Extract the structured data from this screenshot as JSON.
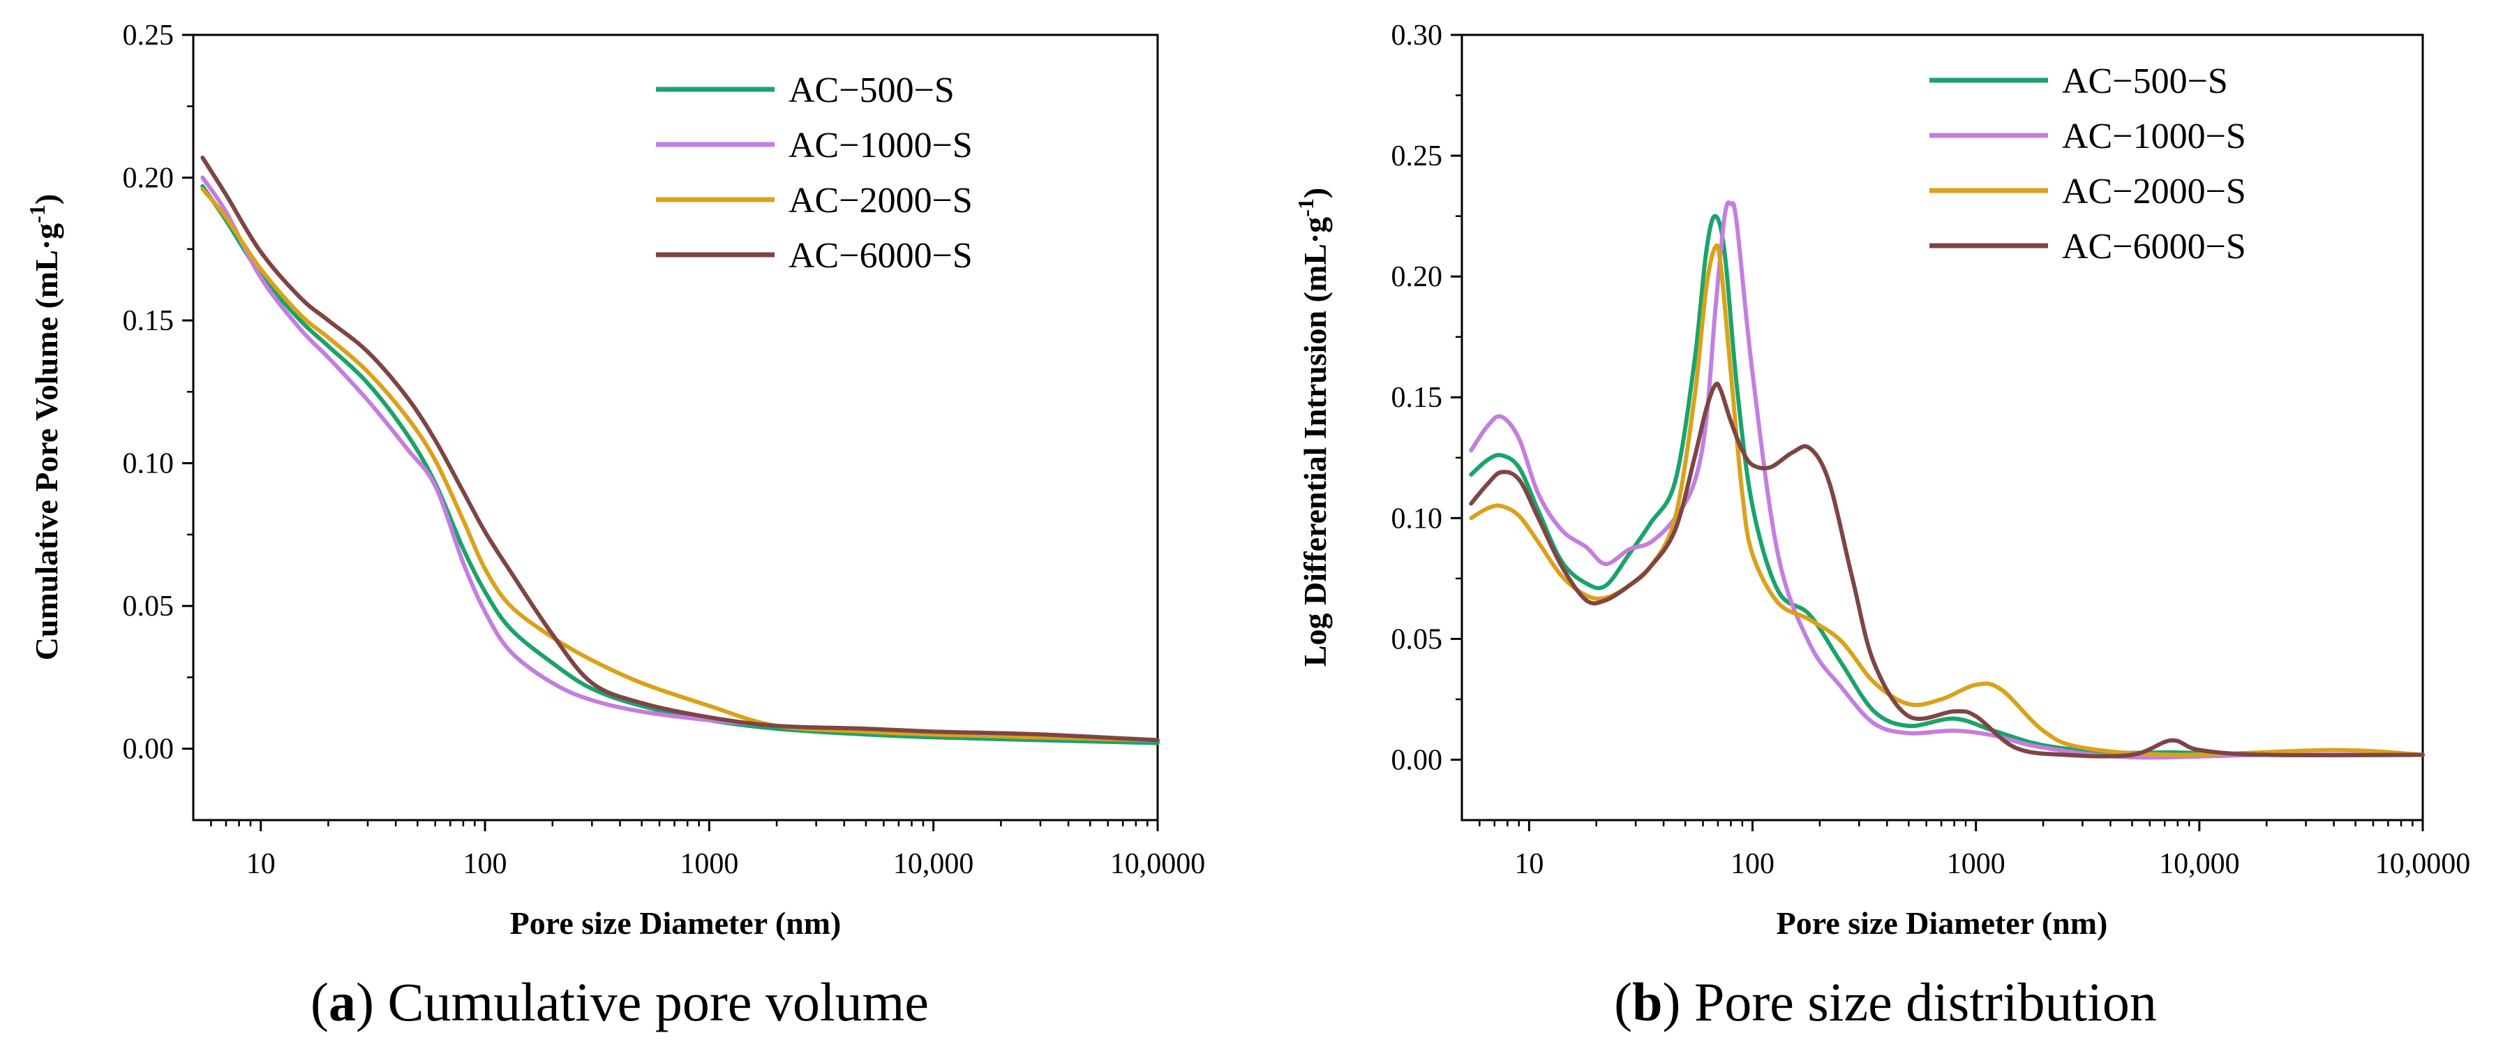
{
  "chart_data": [
    {
      "type": "line",
      "caption_letter": "a",
      "caption_text": "Cumulative pore volume",
      "xlabel": "Pore size Diameter (nm)",
      "ylabel_main": "Cumulative Pore Volume (mL·g",
      "ylabel_sup": "-1",
      "ylabel_end": ")",
      "xscale": "log",
      "xlim": [
        5,
        100000
      ],
      "ylim": [
        -0.025,
        0.25
      ],
      "x_ticks": [
        10,
        100,
        1000,
        10000,
        100000
      ],
      "x_tick_labels": [
        "10",
        "100",
        "1000",
        "10,000",
        "10,0000"
      ],
      "y_ticks": [
        0.0,
        0.05,
        0.1,
        0.15,
        0.2,
        0.25
      ],
      "y_tick_labels": [
        "0.00",
        "0.05",
        "0.10",
        "0.15",
        "0.20",
        "0.25"
      ],
      "legend_position": "top-right",
      "series": [
        {
          "name": "AC−500−S",
          "color": "#1aa36b",
          "x": [
            5.5,
            7,
            10,
            15,
            20,
            30,
            45,
            60,
            80,
            100,
            130,
            200,
            300,
            500,
            1000,
            2000,
            5000,
            10000,
            30000,
            100000
          ],
          "y": [
            0.197,
            0.185,
            0.166,
            0.15,
            0.141,
            0.128,
            0.11,
            0.093,
            0.07,
            0.055,
            0.042,
            0.03,
            0.021,
            0.015,
            0.01,
            0.007,
            0.005,
            0.004,
            0.003,
            0.002
          ]
        },
        {
          "name": "AC−1000−S",
          "color": "#c37ee0",
          "x": [
            5.5,
            7,
            10,
            15,
            20,
            30,
            45,
            60,
            80,
            100,
            130,
            200,
            300,
            500,
            1000,
            2000,
            5000,
            10000,
            30000,
            100000
          ],
          "y": [
            0.2,
            0.188,
            0.165,
            0.147,
            0.137,
            0.122,
            0.105,
            0.092,
            0.065,
            0.048,
            0.034,
            0.023,
            0.017,
            0.013,
            0.01,
            0.008,
            0.006,
            0.005,
            0.004,
            0.003
          ]
        },
        {
          "name": "AC−2000−S",
          "color": "#d9a21a",
          "x": [
            5.5,
            7,
            10,
            15,
            20,
            30,
            45,
            60,
            80,
            100,
            130,
            200,
            300,
            500,
            1000,
            2000,
            5000,
            10000,
            30000,
            100000
          ],
          "y": [
            0.196,
            0.186,
            0.168,
            0.152,
            0.144,
            0.132,
            0.116,
            0.101,
            0.08,
            0.063,
            0.05,
            0.039,
            0.031,
            0.023,
            0.015,
            0.008,
            0.006,
            0.005,
            0.004,
            0.003
          ]
        },
        {
          "name": "AC−6000−S",
          "color": "#7e4543",
          "x": [
            5.5,
            7,
            10,
            15,
            20,
            30,
            45,
            60,
            80,
            100,
            130,
            200,
            300,
            500,
            1000,
            2000,
            5000,
            10000,
            30000,
            100000
          ],
          "y": [
            0.207,
            0.194,
            0.174,
            0.158,
            0.15,
            0.139,
            0.123,
            0.108,
            0.09,
            0.076,
            0.062,
            0.04,
            0.023,
            0.016,
            0.011,
            0.008,
            0.007,
            0.006,
            0.005,
            0.003
          ]
        }
      ]
    },
    {
      "type": "line",
      "caption_letter": "b",
      "caption_text": "Pore size distribution",
      "xlabel": "Pore size Diameter (nm)",
      "ylabel_main": "Log Differential Intrusion (mL·g",
      "ylabel_sup": "-1",
      "ylabel_end": ")",
      "xscale": "log",
      "xlim": [
        5,
        100000
      ],
      "ylim": [
        -0.025,
        0.3
      ],
      "x_ticks": [
        10,
        100,
        1000,
        10000,
        100000
      ],
      "x_tick_labels": [
        "10",
        "100",
        "1000",
        "10,000",
        "10,0000"
      ],
      "y_ticks": [
        0.0,
        0.05,
        0.1,
        0.15,
        0.2,
        0.25,
        0.3
      ],
      "y_tick_labels": [
        "0.00",
        "0.05",
        "0.10",
        "0.15",
        "0.20",
        "0.25",
        "0.30"
      ],
      "legend_position": "top-right",
      "series": [
        {
          "name": "AC−500−S",
          "color": "#1aa36b",
          "x": [
            5.5,
            6.5,
            7.5,
            9,
            11,
            14,
            18,
            22,
            28,
            35,
            45,
            55,
            62,
            68,
            75,
            85,
            100,
            130,
            180,
            250,
            350,
            500,
            800,
            1200,
            2000,
            4000,
            8000,
            20000,
            100000
          ],
          "y": [
            0.118,
            0.124,
            0.126,
            0.121,
            0.103,
            0.082,
            0.073,
            0.072,
            0.085,
            0.098,
            0.115,
            0.165,
            0.21,
            0.225,
            0.21,
            0.155,
            0.105,
            0.07,
            0.06,
            0.04,
            0.02,
            0.014,
            0.017,
            0.012,
            0.006,
            0.003,
            0.003,
            0.002,
            0.002
          ]
        },
        {
          "name": "AC−1000−S",
          "color": "#c37ee0",
          "x": [
            5.5,
            6.5,
            7.5,
            9,
            11,
            14,
            18,
            22,
            28,
            35,
            45,
            55,
            62,
            68,
            75,
            80,
            85,
            100,
            130,
            180,
            250,
            350,
            500,
            800,
            1200,
            2000,
            5000,
            20000,
            100000
          ],
          "y": [
            0.128,
            0.138,
            0.142,
            0.133,
            0.11,
            0.095,
            0.088,
            0.081,
            0.087,
            0.09,
            0.1,
            0.115,
            0.14,
            0.185,
            0.225,
            0.23,
            0.222,
            0.16,
            0.085,
            0.048,
            0.03,
            0.015,
            0.011,
            0.012,
            0.01,
            0.005,
            0.001,
            0.002,
            0.002
          ]
        },
        {
          "name": "AC−2000−S",
          "color": "#d9a21a",
          "x": [
            5.5,
            6.5,
            7.5,
            9,
            11,
            14,
            18,
            22,
            28,
            35,
            45,
            55,
            62,
            68,
            72,
            80,
            90,
            100,
            130,
            180,
            250,
            350,
            500,
            700,
            1000,
            1300,
            2000,
            3000,
            8000,
            40000,
            100000
          ],
          "y": [
            0.1,
            0.104,
            0.105,
            0.101,
            0.09,
            0.076,
            0.068,
            0.067,
            0.072,
            0.08,
            0.1,
            0.15,
            0.195,
            0.212,
            0.205,
            0.16,
            0.11,
            0.085,
            0.065,
            0.058,
            0.049,
            0.032,
            0.023,
            0.025,
            0.031,
            0.029,
            0.012,
            0.005,
            0.002,
            0.004,
            0.002
          ]
        },
        {
          "name": "AC−6000−S",
          "color": "#7e4543",
          "x": [
            5.5,
            6.5,
            7.5,
            9,
            11,
            14,
            18,
            22,
            28,
            35,
            45,
            55,
            62,
            68,
            72,
            80,
            90,
            100,
            120,
            150,
            180,
            220,
            280,
            350,
            500,
            800,
            1000,
            1500,
            2500,
            5000,
            7500,
            10000,
            20000,
            100000
          ],
          "y": [
            0.106,
            0.114,
            0.119,
            0.116,
            0.1,
            0.08,
            0.066,
            0.066,
            0.072,
            0.08,
            0.095,
            0.125,
            0.145,
            0.155,
            0.153,
            0.14,
            0.128,
            0.122,
            0.121,
            0.127,
            0.129,
            0.115,
            0.075,
            0.04,
            0.018,
            0.02,
            0.018,
            0.005,
            0.002,
            0.002,
            0.008,
            0.004,
            0.002,
            0.002
          ]
        }
      ]
    }
  ]
}
